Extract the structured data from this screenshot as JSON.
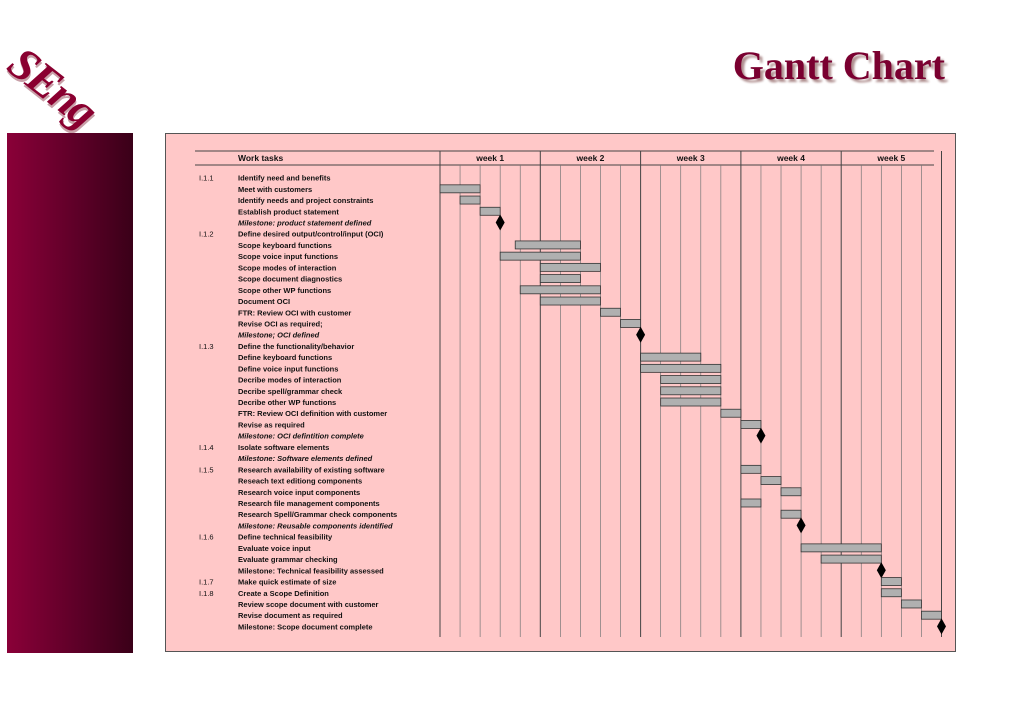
{
  "title": "Gantt Chart",
  "logo_text": "SEng",
  "colors": {
    "title": "#7a0030",
    "panel": "#ffc8c8",
    "bar": "#b0b0b0",
    "sidebar": "#6a002c"
  },
  "chart_data": {
    "type": "gantt",
    "header": {
      "task_column": "Work tasks",
      "weeks": [
        "week 1",
        "week 2",
        "week 3",
        "week 4",
        "week 5"
      ]
    },
    "days_per_week": 5,
    "rows": [
      {
        "id": "I.1.1",
        "label": "Identify need and benefits"
      },
      {
        "label": "Meet with customers",
        "start": 0,
        "end": 2
      },
      {
        "label": "Identify needs and project constraints",
        "start": 1,
        "end": 2
      },
      {
        "label": "Establish product statement",
        "start": 2,
        "end": 3
      },
      {
        "label": "Milestone:  product statement defined",
        "italic": true,
        "milestone": 3
      },
      {
        "id": "I.1.2",
        "label": "Define desired output/control/input (OCI)"
      },
      {
        "label": "Scope keyboard functions",
        "start": 3.75,
        "end": 7
      },
      {
        "label": "Scope voice input functions",
        "start": 3,
        "end": 7
      },
      {
        "label": "Scope modes of interaction",
        "start": 5,
        "end": 8
      },
      {
        "label": "Scope document diagnostics",
        "start": 5,
        "end": 7
      },
      {
        "label": "Scope other WP functions",
        "start": 4,
        "end": 8
      },
      {
        "label": "Document  OCI",
        "start": 5,
        "end": 8
      },
      {
        "label": "FTR:  Review OCI with customer",
        "start": 8,
        "end": 9
      },
      {
        "label": "Revise OCI as required;",
        "start": 9,
        "end": 10
      },
      {
        "label": "Milestone;  OCI defined",
        "italic": true,
        "milestone": 10
      },
      {
        "id": "I.1.3",
        "label": "Define the functionality/behavior"
      },
      {
        "label": "Define keyboard functions",
        "start": 10,
        "end": 13
      },
      {
        "label": "Define voice input functions",
        "start": 10,
        "end": 14
      },
      {
        "label": "Decribe modes of interaction",
        "start": 11,
        "end": 14
      },
      {
        "label": "Decribe spell/grammar check",
        "start": 11,
        "end": 14
      },
      {
        "label": "Decribe other WP functions",
        "start": 11,
        "end": 14
      },
      {
        "label": "FTR:  Review OCI definition with customer",
        "start": 14,
        "end": 15
      },
      {
        "label": "Revise as required",
        "start": 15,
        "end": 16
      },
      {
        "label": "Milestone:  OCI defintition complete",
        "italic": true,
        "milestone": 16
      },
      {
        "id": "I.1.4",
        "label": "Isolate software elements"
      },
      {
        "label": "Milestone:  Software elements defined",
        "italic": true
      },
      {
        "id": "I.1.5",
        "label": "Research availability of existing software",
        "start": 15,
        "end": 16
      },
      {
        "label": "Reseach text editiong components",
        "start": 16,
        "end": 17
      },
      {
        "label": "Research voice input components",
        "start": 17,
        "end": 18
      },
      {
        "label": "Research file management components",
        "start": 15,
        "end": 16
      },
      {
        "label": "Research Spell/Grammar check components",
        "start": 17,
        "end": 18
      },
      {
        "label": "Milestone:  Reusable components identified",
        "italic": true,
        "milestone": 18
      },
      {
        "id": "I.1.6",
        "label": "Define technical feasibility"
      },
      {
        "label": "Evaluate voice input",
        "start": 18,
        "end": 22
      },
      {
        "label": "Evaluate grammar checking",
        "start": 19,
        "end": 22
      },
      {
        "label": "Milestone:  Technical feasibility assessed",
        "milestone": 22
      },
      {
        "id": "I.1.7",
        "label": "Make quick estimate of size",
        "start": 22,
        "end": 23
      },
      {
        "id": "I.1.8",
        "label": "Create a Scope Definition",
        "start": 22,
        "end": 23
      },
      {
        "label": "Review scope document with customer",
        "start": 23,
        "end": 24
      },
      {
        "label": "Revise document as required",
        "start": 24,
        "end": 25
      },
      {
        "label": "Milestone:  Scope document complete",
        "milestone": 25
      }
    ]
  }
}
